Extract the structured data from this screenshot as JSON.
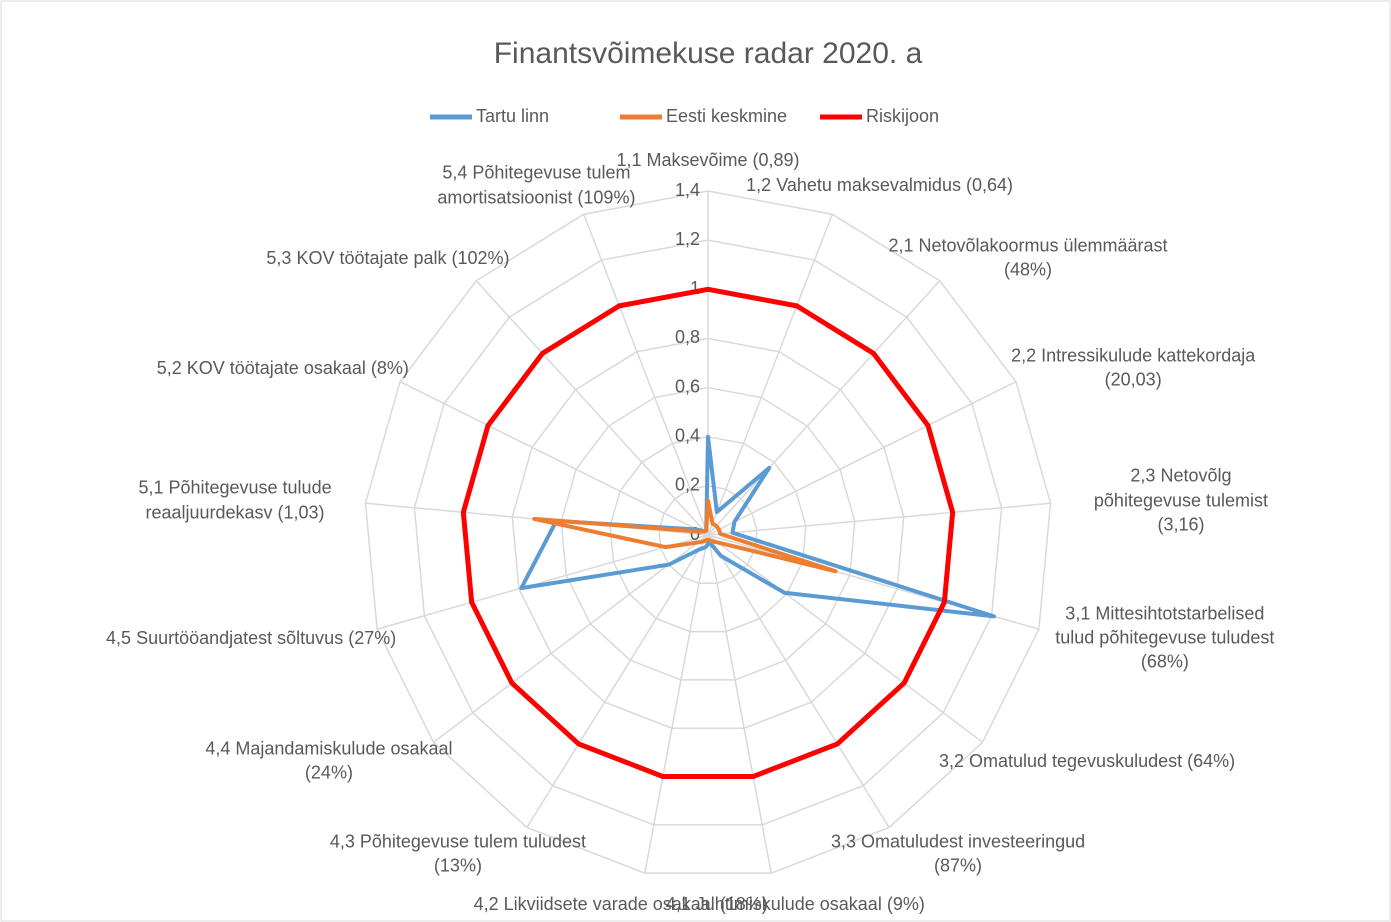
{
  "chart_data": {
    "type": "radar",
    "title": "Finantsvõimekuse radar 2020. a",
    "categories": [
      "1,1 Maksevõime (0,89)",
      "1,2 Vahetu maksevalmidus (0,64)",
      "2,1 Netovõlakoormus ülemmäärast (48%)",
      "2,2 Intressikulude kattekordaja (20,03)",
      "2,3 Netovõlg põhitegevuse tulemist (3,16)",
      "3,1 Mittesihtotstarbelised tulud põhitegevuse tuludest (68%)",
      "3,2 Omatulud tegevuskuludest (64%)",
      "3,3 Omatuludest investeeringud (87%)",
      "4,1 Juhtimiskulude osakaal (9%)",
      "4,2 Likviidsete varade osakaal (18%)",
      "4,3 Põhitegevuse tulem tuludest (13%)",
      "4,4 Majandamiskulude osakaal (24%)",
      "4,5 Suurtööandjatest sõltuvus (27%)",
      "5,1 Põhitegevuse tulude reaaljuurdekasv (1,03)",
      "5,2 KOV töötajate osakaal (8%)",
      "5,3 KOV töötajate palk (102%)",
      "5,4 Põhitegevuse tulem amortisatsioonist (109%)"
    ],
    "series": [
      {
        "name": "Tartu linn",
        "color": "#5b9bd5",
        "values": [
          0.4,
          0.1,
          0.37,
          0.12,
          0.1,
          1.21,
          0.39,
          0.1,
          0.03,
          0.05,
          0.07,
          0.2,
          0.79,
          0.62,
          0.05,
          0.02,
          0.02
        ]
      },
      {
        "name": "Eesti keskmine",
        "color": "#ed7d31",
        "values": [
          0.14,
          0.05,
          0.05,
          0.05,
          0.05,
          0.54,
          0.05,
          0.03,
          0.02,
          0.02,
          0.03,
          0.05,
          0.18,
          0.71,
          0.03,
          0.02,
          0.02
        ]
      },
      {
        "name": "Riskijoon",
        "color": "#ff0000",
        "values": [
          1,
          1,
          1,
          1,
          1,
          1,
          1,
          1,
          1,
          1,
          1,
          1,
          1,
          1,
          1,
          1,
          1
        ]
      }
    ],
    "ylim": [
      0,
      1.4
    ],
    "yticks": [
      0,
      {
        "value": 0.2,
        "label": "0,2"
      },
      {
        "value": 0.4,
        "label": "0,4"
      },
      {
        "value": 0.6,
        "label": "0,6"
      },
      {
        "value": 0.8,
        "label": "0,8"
      },
      1,
      {
        "value": 1.2,
        "label": "1,2"
      },
      {
        "value": 1.4,
        "label": "1,4"
      }
    ],
    "grid": true,
    "legend": "top"
  }
}
